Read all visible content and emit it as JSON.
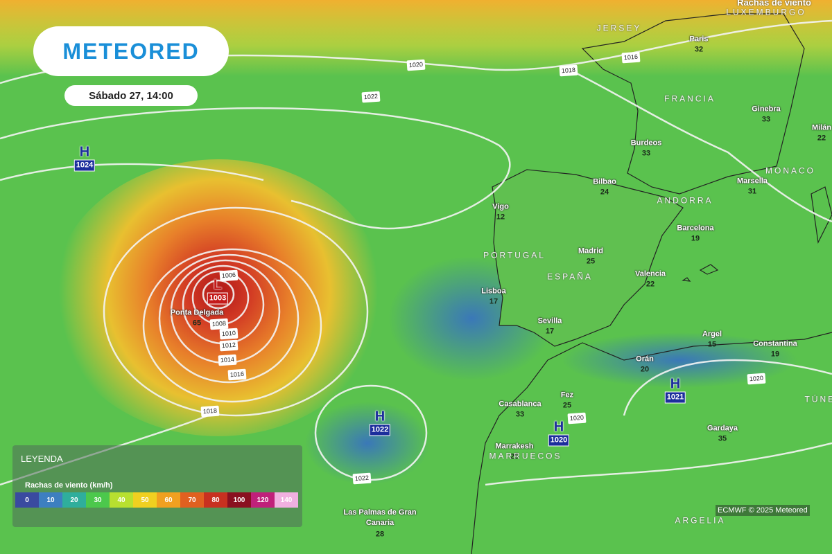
{
  "header": {
    "logo": "METEORED",
    "datetime": "Sábado 27, 14:00",
    "layer": "Rachas de viento"
  },
  "pressure_centers": [
    {
      "type": "H",
      "value": "1024"
    },
    {
      "type": "L",
      "value": "1003"
    },
    {
      "type": "H",
      "value": "1022"
    },
    {
      "type": "H",
      "value": "1020"
    },
    {
      "type": "H",
      "value": "1021"
    }
  ],
  "isobar_labels": [
    "1020",
    "1018",
    "1016",
    "1022",
    "1006",
    "1008",
    "1010",
    "1012",
    "1014",
    "1016",
    "1018",
    "1022",
    "1020",
    "1020"
  ],
  "cities": [
    {
      "name": "Paris",
      "gust": "32"
    },
    {
      "name": "Ginebra",
      "gust": "33"
    },
    {
      "name": "Milán",
      "gust": "22"
    },
    {
      "name": "Burdeos",
      "gust": "33"
    },
    {
      "name": "Marsella",
      "gust": "31"
    },
    {
      "name": "Bilbao",
      "gust": "24"
    },
    {
      "name": "Vigo",
      "gust": "12"
    },
    {
      "name": "Barcelona",
      "gust": "19"
    },
    {
      "name": "Madrid",
      "gust": "25"
    },
    {
      "name": "Valencia",
      "gust": "22"
    },
    {
      "name": "Lisboa",
      "gust": "17"
    },
    {
      "name": "Sevilla",
      "gust": "17"
    },
    {
      "name": "Argel",
      "gust": "15"
    },
    {
      "name": "Constantina",
      "gust": "19"
    },
    {
      "name": "Orán",
      "gust": "20"
    },
    {
      "name": "Fez",
      "gust": "25"
    },
    {
      "name": "Casablanca",
      "gust": "33"
    },
    {
      "name": "Gardaya",
      "gust": "35"
    },
    {
      "name": "Marrakesh",
      "gust": "25"
    },
    {
      "name": "Ponta Delgada",
      "gust": "65"
    },
    {
      "name": "Las Palmas de Gran Canaria",
      "gust": "28"
    }
  ],
  "regions": [
    "FRANCIA",
    "PORTUGAL",
    "ESPAÑA",
    "ANDORRA",
    "MONACO",
    "JERSEY",
    "MARRUECOS",
    "ARGELIA",
    "TÚNEZ",
    "LUXEMBURGO"
  ],
  "legend": {
    "title": "LEYENDA",
    "subtitle": "Rachas de viento (km/h)",
    "scale": [
      "0",
      "10",
      "20",
      "30",
      "40",
      "50",
      "60",
      "70",
      "80",
      "100",
      "120",
      "140"
    ]
  },
  "credit": "ECMWF © 2025 Meteored"
}
